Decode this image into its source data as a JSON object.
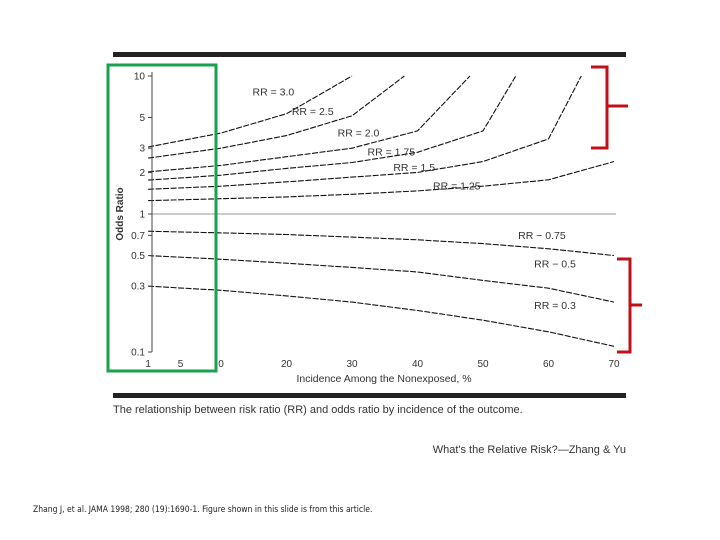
{
  "chart_data": {
    "type": "line",
    "title": "",
    "xlabel": "Incidence Among the Nonexposed, %",
    "ylabel": "Odds Ratio",
    "xlim": [
      0,
      70
    ],
    "ylim": [
      0.1,
      10
    ],
    "y_scale": "log",
    "x_axis_note": "x axis is expanded between 0 and 10 (ticks 1 and 5 shown in that zone)",
    "x_ticks_left_zone": [
      "1",
      "5"
    ],
    "x_ticks": [
      "0",
      "20",
      "30",
      "40",
      "50",
      "60",
      "70"
    ],
    "x_tick_values": [
      10,
      20,
      30,
      40,
      50,
      60,
      70
    ],
    "y_ticks": [
      "0.1",
      "0.3",
      "0.5",
      "0.7",
      "1",
      "2",
      "3",
      "5",
      "10"
    ],
    "y_tick_values": [
      0.1,
      0.3,
      0.5,
      0.7,
      1,
      2,
      3,
      5,
      10
    ],
    "series": [
      {
        "name": "RR = 3.0",
        "x": [
          1,
          10,
          20,
          30
        ],
        "y": [
          3.06,
          3.86,
          5.33,
          10.0
        ]
      },
      {
        "name": "RR = 2.5",
        "x": [
          1,
          10,
          20,
          30,
          38
        ],
        "y": [
          2.54,
          3.0,
          3.7,
          5.15,
          10.0
        ]
      },
      {
        "name": "RR = 2.0",
        "x": [
          1,
          10,
          20,
          30,
          40,
          48
        ],
        "y": [
          2.02,
          2.25,
          2.6,
          3.0,
          4.0,
          10.0
        ]
      },
      {
        "name": "RR = 1.75",
        "x": [
          1,
          10,
          20,
          30,
          40,
          50,
          55
        ],
        "y": [
          1.76,
          1.91,
          2.14,
          2.36,
          2.8,
          4.0,
          10.0
        ]
      },
      {
        "name": "RR = 1.5",
        "x": [
          1,
          10,
          20,
          30,
          40,
          50,
          60,
          65
        ],
        "y": [
          1.51,
          1.59,
          1.71,
          1.85,
          2.0,
          2.4,
          3.5,
          10.0
        ]
      },
      {
        "name": "RR = 1.25",
        "x": [
          1,
          10,
          20,
          30,
          40,
          50,
          60,
          70
        ],
        "y": [
          1.25,
          1.29,
          1.33,
          1.39,
          1.47,
          1.59,
          1.77,
          2.4
        ]
      },
      {
        "name": "RR = 0.75",
        "x": [
          1,
          10,
          20,
          30,
          40,
          50,
          60,
          70
        ],
        "y": [
          0.75,
          0.73,
          0.71,
          0.68,
          0.65,
          0.61,
          0.56,
          0.5
        ]
      },
      {
        "name": "RR = 0.5",
        "x": [
          1,
          10,
          20,
          30,
          40,
          50,
          60,
          70
        ],
        "y": [
          0.5,
          0.47,
          0.44,
          0.41,
          0.38,
          0.33,
          0.29,
          0.23
        ]
      },
      {
        "name": "RR = 0.3",
        "x": [
          1,
          10,
          20,
          30,
          40,
          50,
          60,
          70
        ],
        "y": [
          0.3,
          0.28,
          0.255,
          0.23,
          0.2,
          0.17,
          0.14,
          0.11
        ]
      }
    ],
    "curve_labels": [
      "RR = 3.0",
      "RR = 2.5",
      "RR = 2.0",
      "RR = 1.75",
      "RR = 1.5",
      "RR = 1.25",
      "RR − 0.75",
      "RR − 0.5",
      "RR = 0.3"
    ],
    "reference_line": {
      "y": 1,
      "color": "#bbbbbb"
    },
    "grid": false,
    "legend": "none (curves labeled inline)"
  },
  "caption": "The relationship between risk ratio (RR) and odds ratio by incidence of the outcome.",
  "source": "What's the Relative Risk?—Zhang & Yu",
  "citation": "Zhang J, et al. JAMA 1998; 280 (19):1690-1. Figure shown in this slide is from this article.",
  "colors": {
    "highlight_box": "#1aa050",
    "bracket": "#c0101a",
    "rule": "#222222",
    "curve": "#111111",
    "reference_line": "#bbbbbb"
  }
}
